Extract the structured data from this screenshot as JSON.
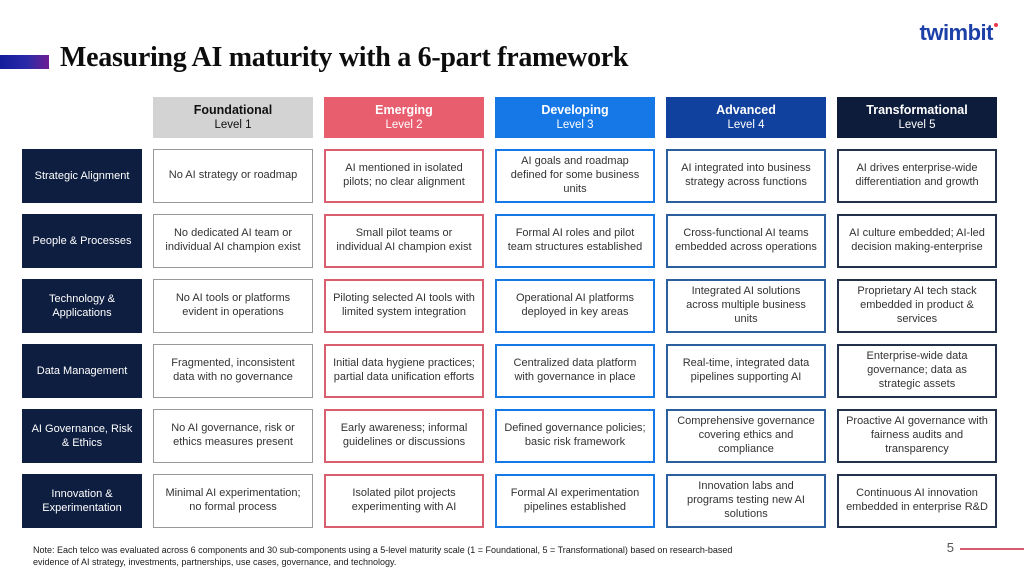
{
  "logo": {
    "text": "twimbit"
  },
  "title": "Measuring AI maturity with a 6-part framework",
  "colors": {
    "accent_gradient_start": "#141c9c",
    "accent_gradient_end": "#6e1f92",
    "logo_blue": "#1c3fa8",
    "row_label_bg": "#0e1e40",
    "foundational": "#d3d3d3",
    "emerging": "#e85e6e",
    "developing": "#1578e6",
    "advanced": "#11419e",
    "transformational": "#0e1c3c",
    "page_line": "#d85a6e"
  },
  "columns": [
    {
      "name": "Foundational",
      "level": "Level 1"
    },
    {
      "name": "Emerging",
      "level": "Level 2"
    },
    {
      "name": "Developing",
      "level": "Level 3"
    },
    {
      "name": "Advanced",
      "level": "Level 4"
    },
    {
      "name": "Transformational",
      "level": "Level 5"
    }
  ],
  "rows": [
    {
      "label": "Strategic Alignment",
      "cells": [
        "No AI strategy or roadmap",
        "AI mentioned in isolated pilots; no clear alignment",
        "AI goals and roadmap defined for some business units",
        "AI integrated into business strategy across functions",
        "AI drives enterprise-wide differentiation and growth"
      ]
    },
    {
      "label": "People & Processes",
      "cells": [
        "No dedicated AI team or individual AI champion exist",
        "Small pilot teams or individual AI champion exist",
        "Formal AI roles and pilot team structures established",
        "Cross-functional AI teams embedded across operations",
        "AI culture embedded; AI-led decision making-enterprise"
      ]
    },
    {
      "label": "Technology & Applications",
      "cells": [
        "No AI tools or platforms evident in operations",
        "Piloting selected AI tools with limited system integration",
        "Operational AI platforms deployed in key areas",
        "Integrated AI solutions across multiple business units",
        "Proprietary AI tech stack embedded in product & services"
      ]
    },
    {
      "label": "Data Management",
      "cells": [
        "Fragmented, inconsistent data with no governance",
        "Initial data hygiene practices; partial data unification efforts",
        "Centralized data platform with governance in place",
        "Real-time, integrated data pipelines supporting AI",
        "Enterprise-wide data governance; data as strategic assets"
      ]
    },
    {
      "label": "AI Governance, Risk & Ethics",
      "cells": [
        "No AI governance, risk or ethics measures present",
        "Early awareness; informal guidelines or discussions",
        "Defined governance policies; basic risk framework",
        "Comprehensive governance covering ethics and compliance",
        "Proactive AI governance with fairness audits and transparency"
      ]
    },
    {
      "label": "Innovation & Experimentation",
      "cells": [
        "Minimal AI experimentation; no formal process",
        "Isolated pilot projects experimenting with AI",
        "Formal AI experimentation pipelines established",
        "Innovation labs and programs testing new AI solutions",
        "Continuous AI innovation embedded in enterprise R&D"
      ]
    }
  ],
  "footer": {
    "note": "Note: Each telco was evaluated across 6 components and 30 sub-components using a 5-level maturity scale (1 = Foundational, 5 = Transformational) based on research-based evidence of AI strategy, investments, partnerships, use cases, governance, and technology.",
    "page_number": "5"
  }
}
